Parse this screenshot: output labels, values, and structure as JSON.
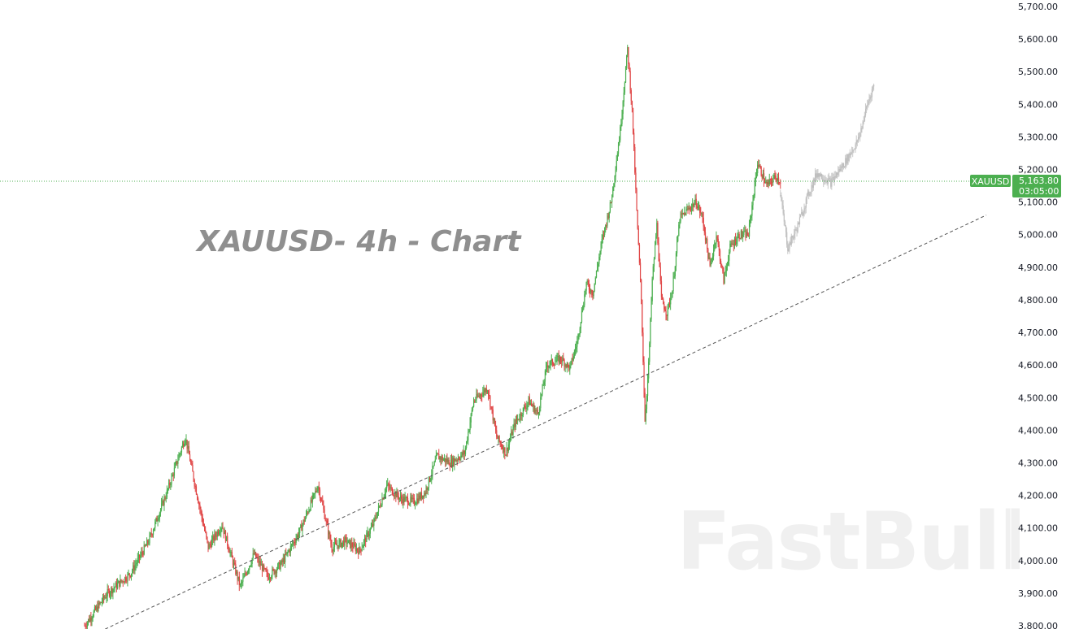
{
  "chart_data": {
    "type": "candlestick",
    "title": "XAUUSD- 4h - Chart",
    "symbol": "XAUUSD",
    "timeframe": "4h",
    "ylim": [
      3790,
      5720
    ],
    "y_ticks": [
      "3,800.00",
      "3,900.00",
      "4,000.00",
      "4,100.00",
      "4,200.00",
      "4,300.00",
      "4,400.00",
      "4,500.00",
      "4,600.00",
      "4,700.00",
      "4,800.00",
      "4,900.00",
      "5,000.00",
      "5,100.00",
      "5,200.00",
      "5,300.00",
      "5,400.00",
      "5,500.00",
      "5,600.00",
      "5,700.00"
    ],
    "last_price": 5163.8,
    "last_price_label": "5,163.80",
    "countdown": "03:05:00",
    "grid": false,
    "price_path": [
      [
        0,
        3800
      ],
      [
        25,
        3900
      ],
      [
        50,
        3960
      ],
      [
        70,
        4060
      ],
      [
        90,
        4210
      ],
      [
        110,
        4380
      ],
      [
        120,
        4240
      ],
      [
        135,
        4040
      ],
      [
        150,
        4110
      ],
      [
        170,
        3920
      ],
      [
        185,
        4020
      ],
      [
        200,
        3950
      ],
      [
        215,
        3990
      ],
      [
        235,
        4090
      ],
      [
        255,
        4230
      ],
      [
        270,
        4040
      ],
      [
        285,
        4060
      ],
      [
        300,
        4030
      ],
      [
        315,
        4110
      ],
      [
        330,
        4230
      ],
      [
        345,
        4190
      ],
      [
        360,
        4180
      ],
      [
        372,
        4210
      ],
      [
        385,
        4320
      ],
      [
        400,
        4300
      ],
      [
        415,
        4330
      ],
      [
        425,
        4490
      ],
      [
        440,
        4530
      ],
      [
        450,
        4380
      ],
      [
        460,
        4330
      ],
      [
        470,
        4420
      ],
      [
        485,
        4490
      ],
      [
        495,
        4450
      ],
      [
        505,
        4600
      ],
      [
        520,
        4620
      ],
      [
        530,
        4590
      ],
      [
        538,
        4670
      ],
      [
        548,
        4850
      ],
      [
        555,
        4820
      ],
      [
        565,
        4980
      ],
      [
        575,
        5100
      ],
      [
        585,
        5320
      ],
      [
        593,
        5570
      ],
      [
        598,
        5380
      ],
      [
        603,
        5070
      ],
      [
        608,
        4800
      ],
      [
        612,
        4430
      ],
      [
        616,
        4600
      ],
      [
        620,
        4860
      ],
      [
        625,
        5030
      ],
      [
        630,
        4800
      ],
      [
        636,
        4760
      ],
      [
        642,
        4830
      ],
      [
        650,
        5050
      ],
      [
        660,
        5080
      ],
      [
        668,
        5100
      ],
      [
        675,
        5050
      ],
      [
        683,
        4900
      ],
      [
        690,
        5000
      ],
      [
        698,
        4860
      ],
      [
        705,
        4960
      ],
      [
        715,
        5000
      ],
      [
        725,
        5000
      ],
      [
        735,
        5220
      ],
      [
        745,
        5150
      ],
      [
        755,
        5180
      ],
      [
        760,
        5164
      ]
    ],
    "projection_path": [
      [
        760,
        5120
      ],
      [
        768,
        4960
      ],
      [
        778,
        5020
      ],
      [
        790,
        5120
      ],
      [
        800,
        5190
      ],
      [
        815,
        5160
      ],
      [
        830,
        5220
      ],
      [
        845,
        5290
      ],
      [
        855,
        5400
      ],
      [
        862,
        5460
      ]
    ],
    "trendline": [
      [
        0,
        3760
      ],
      [
        985,
        5060
      ]
    ]
  },
  "watermark": "FastBull",
  "colors": {
    "up": "#26a69a",
    "down": "#ef5350",
    "up_candle": "#4caf50",
    "down_candle": "#e04646",
    "price_tag": "#4caf50",
    "projection": "#b8b8b8",
    "trendline": "#555555",
    "axis_text": "#131722"
  }
}
